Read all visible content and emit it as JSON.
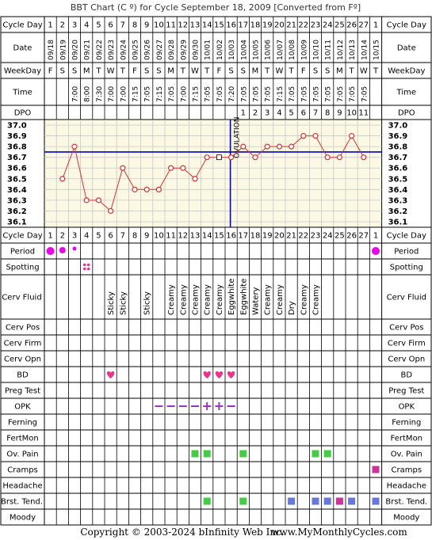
{
  "title": "BBT Chart (C º) for Cycle September 18, 2009  [Converted from Fº]",
  "footer": {
    "copyright": "Copyright © 2003-2024 bInfinity Web Inc.",
    "site": "www.MyMonthlyCycles.com"
  },
  "labels": {
    "cycle_day": "Cycle Day",
    "date": "Date",
    "weekday": "WeekDay",
    "time": "Time",
    "dpo": "DPO",
    "ovulation": "OVULATION"
  },
  "colors": {
    "temp_line": "#e03030",
    "coverline": "#0000cc",
    "chart_bg": "#fbf8e4",
    "period": "#ee00ee",
    "heart": "#ee3388",
    "opk": "#9933cc",
    "green": "#44cc44",
    "blue": "#6677dd",
    "magenta": "#cc3399"
  },
  "chart_data": {
    "type": "line",
    "cycle_days": [
      "1",
      "2",
      "3",
      "4",
      "5",
      "6",
      "7",
      "8",
      "9",
      "10",
      "11",
      "12",
      "13",
      "14",
      "15",
      "16",
      "17",
      "18",
      "19",
      "20",
      "21",
      "22",
      "23",
      "24",
      "25",
      "26",
      "27",
      "1"
    ],
    "dates": [
      "09/18",
      "09/19",
      "09/20",
      "09/21",
      "09/22",
      "09/23",
      "09/24",
      "09/25",
      "09/26",
      "09/27",
      "09/28",
      "09/29",
      "09/30",
      "10/01",
      "10/02",
      "10/03",
      "10/04",
      "10/05",
      "10/06",
      "10/07",
      "10/08",
      "10/09",
      "10/10",
      "10/11",
      "10/12",
      "10/13",
      "10/14",
      "10/15"
    ],
    "weekdays": [
      "F",
      "S",
      "S",
      "M",
      "T",
      "W",
      "T",
      "F",
      "S",
      "S",
      "M",
      "T",
      "W",
      "T",
      "F",
      "S",
      "S",
      "M",
      "T",
      "W",
      "T",
      "F",
      "S",
      "S",
      "M",
      "T",
      "W",
      "T"
    ],
    "times": [
      "",
      "",
      "7:00",
      "8:00",
      "7:30",
      "7:00",
      "7:00",
      "7:15",
      "7:05",
      "7:15",
      "7:05",
      "7:00",
      "7:15",
      "7:05",
      "7:05",
      "7:20",
      "7:05",
      "7:05",
      "7:05",
      "7:15",
      "7:05",
      "7:05",
      "7:05",
      "7:05",
      "7:05",
      "7:05",
      "7:05",
      ""
    ],
    "dpo": [
      "",
      "",
      "",
      "",
      "",
      "",
      "",
      "",
      "",
      "",
      "",
      "",
      "",
      "",
      "",
      "",
      "1",
      "2",
      "3",
      "4",
      "5",
      "6",
      "7",
      "8",
      "9",
      "10",
      "11",
      ""
    ],
    "temps": [
      null,
      36.5,
      36.8,
      36.3,
      36.3,
      36.2,
      36.6,
      36.4,
      36.4,
      36.4,
      36.6,
      36.6,
      36.5,
      36.7,
      36.7,
      36.7,
      36.8,
      36.7,
      36.8,
      36.8,
      36.8,
      36.9,
      36.9,
      36.7,
      36.7,
      36.9,
      36.7,
      null
    ],
    "temp_open": [
      false,
      false,
      false,
      false,
      false,
      false,
      false,
      false,
      false,
      false,
      false,
      false,
      false,
      false,
      true,
      false,
      false,
      false,
      false,
      false,
      false,
      false,
      false,
      false,
      false,
      false,
      false,
      false
    ],
    "coverline": 36.75,
    "ovulation_day_index": 15,
    "ylim": [
      36.1,
      37.0
    ],
    "yticks": [
      "37.0",
      "36.9",
      "36.8",
      "36.7",
      "36.6",
      "36.5",
      "36.4",
      "36.3",
      "36.2",
      "36.1"
    ]
  },
  "rows": [
    {
      "name": "Period",
      "marks": [
        {
          "i": 0,
          "type": "dot-lg"
        },
        {
          "i": 1,
          "type": "dot-md"
        },
        {
          "i": 2,
          "type": "dot-sm"
        },
        {
          "i": 27,
          "type": "dot-lg"
        }
      ]
    },
    {
      "name": "Spotting",
      "marks": [
        {
          "i": 3,
          "type": "dots4"
        }
      ]
    },
    {
      "name": "Cerv Fluid",
      "marks": [
        {
          "i": 5,
          "text": "Sticky"
        },
        {
          "i": 6,
          "text": "Sticky"
        },
        {
          "i": 8,
          "text": "Sticky"
        },
        {
          "i": 10,
          "text": "Creamy"
        },
        {
          "i": 11,
          "text": "Creamy"
        },
        {
          "i": 12,
          "text": "Creamy"
        },
        {
          "i": 13,
          "text": "Creamy"
        },
        {
          "i": 14,
          "text": "Creamy"
        },
        {
          "i": 15,
          "text": "Eggwhite"
        },
        {
          "i": 16,
          "text": "Eggwhite"
        },
        {
          "i": 17,
          "text": "Watery"
        },
        {
          "i": 18,
          "text": "Creamy"
        },
        {
          "i": 19,
          "text": "Creamy"
        },
        {
          "i": 20,
          "text": "Dry"
        },
        {
          "i": 21,
          "text": "Creamy"
        },
        {
          "i": 22,
          "text": "Creamy"
        }
      ]
    },
    {
      "name": "Cerv Pos",
      "marks": []
    },
    {
      "name": "Cerv Firm",
      "marks": []
    },
    {
      "name": "Cerv Opn",
      "marks": []
    },
    {
      "name": "BD",
      "marks": [
        {
          "i": 5,
          "type": "heart"
        },
        {
          "i": 13,
          "type": "heart"
        },
        {
          "i": 14,
          "type": "heart"
        },
        {
          "i": 15,
          "type": "heart"
        }
      ]
    },
    {
      "name": "Preg Test",
      "marks": []
    },
    {
      "name": "OPK",
      "marks": [
        {
          "i": 9,
          "type": "minus"
        },
        {
          "i": 10,
          "type": "minus"
        },
        {
          "i": 11,
          "type": "minus"
        },
        {
          "i": 12,
          "type": "minus"
        },
        {
          "i": 13,
          "type": "plus"
        },
        {
          "i": 14,
          "type": "plus"
        },
        {
          "i": 15,
          "type": "minus"
        }
      ]
    },
    {
      "name": "Ferning",
      "marks": []
    },
    {
      "name": "FertMon",
      "marks": []
    },
    {
      "name": "Ov. Pain",
      "marks": [
        {
          "i": 12,
          "type": "sq-green"
        },
        {
          "i": 13,
          "type": "sq-green"
        },
        {
          "i": 16,
          "type": "sq-green"
        },
        {
          "i": 22,
          "type": "sq-green"
        },
        {
          "i": 23,
          "type": "sq-green"
        }
      ]
    },
    {
      "name": "Cramps",
      "marks": [
        {
          "i": 27,
          "type": "sq-magenta"
        }
      ]
    },
    {
      "name": "Headache",
      "marks": []
    },
    {
      "name": "Brst. Tend.",
      "marks": [
        {
          "i": 13,
          "type": "sq-green"
        },
        {
          "i": 16,
          "type": "sq-green"
        },
        {
          "i": 20,
          "type": "sq-blue"
        },
        {
          "i": 22,
          "type": "sq-blue"
        },
        {
          "i": 23,
          "type": "sq-blue"
        },
        {
          "i": 24,
          "type": "sq-magenta"
        },
        {
          "i": 25,
          "type": "sq-blue"
        },
        {
          "i": 27,
          "type": "sq-blue"
        }
      ]
    },
    {
      "name": "Moody",
      "marks": []
    }
  ]
}
